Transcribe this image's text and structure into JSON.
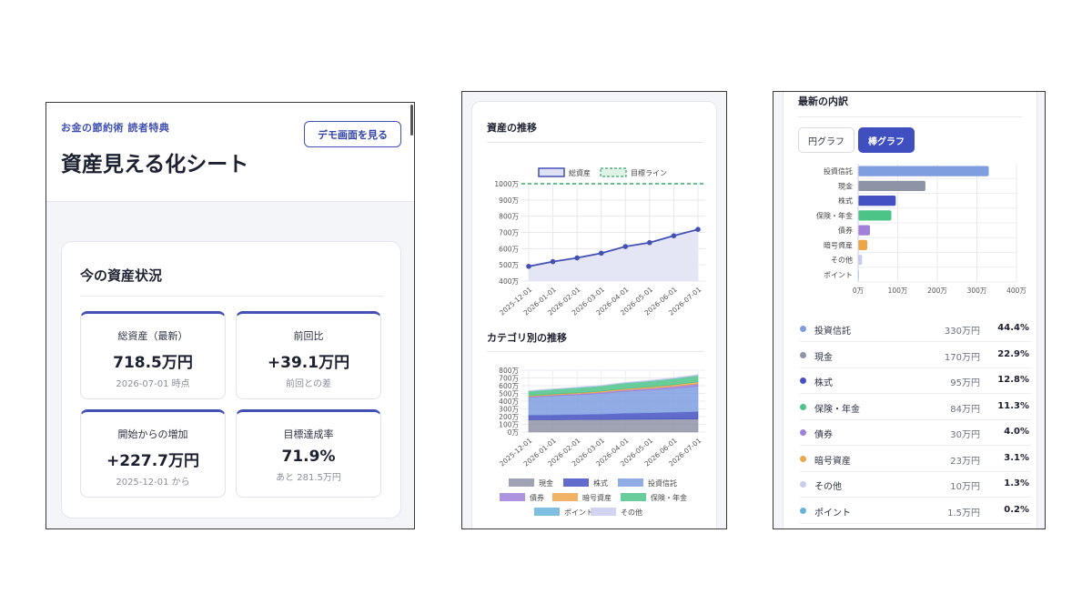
{
  "panel1": {
    "eyebrow": "お金の節約術 読者特典",
    "title": "資産見える化シート",
    "demo_button": "デモ画面を見る",
    "status_title": "今の資産状況",
    "kpis": [
      {
        "label": "総資産（最新）",
        "value": "718.5万円",
        "sub": "2026-07-01 時点"
      },
      {
        "label": "前回比",
        "value": "+39.1万円",
        "sub": "前回との差"
      },
      {
        "label": "開始からの増加",
        "value": "+227.7万円",
        "sub": "2025-12-01 から"
      },
      {
        "label": "目標達成率",
        "value": "71.9%",
        "sub": "あと 281.5万円"
      }
    ]
  },
  "panel2": {
    "trend_title": "資産の推移",
    "category_title": "カテゴリ別の推移"
  },
  "panel3": {
    "breakdown_title": "最新の内訳",
    "tab_pie": "円グラフ",
    "tab_bar": "棒グラフ",
    "legend": [
      {
        "name": "投資信託",
        "amount": "330万円",
        "pct": "44.4%",
        "color": "#7f9ee0"
      },
      {
        "name": "現金",
        "amount": "170万円",
        "pct": "22.9%",
        "color": "#8f93a6"
      },
      {
        "name": "株式",
        "amount": "95万円",
        "pct": "12.8%",
        "color": "#4451c2"
      },
      {
        "name": "保険・年金",
        "amount": "84万円",
        "pct": "11.3%",
        "color": "#4cc488"
      },
      {
        "name": "債券",
        "amount": "30万円",
        "pct": "4.0%",
        "color": "#a080d8"
      },
      {
        "name": "暗号資産",
        "amount": "23万円",
        "pct": "3.1%",
        "color": "#eda54a"
      },
      {
        "name": "その他",
        "amount": "10万円",
        "pct": "1.3%",
        "color": "#c8cbf0"
      },
      {
        "name": "ポイント",
        "amount": "1.5万円",
        "pct": "0.2%",
        "color": "#6ab4dc"
      }
    ]
  },
  "chart_data": [
    {
      "type": "line",
      "title": "資産の推移",
      "x": [
        "2025-12-01",
        "2026-01-01",
        "2026-02-01",
        "2026-03-01",
        "2026-04-01",
        "2026-05-01",
        "2026-06-01",
        "2026-07-01"
      ],
      "series": [
        {
          "name": "総資産",
          "values": [
            490.8,
            520,
            543,
            572,
            613,
            637,
            679.4,
            718.5
          ],
          "color": "#4350b4"
        },
        {
          "name": "目標ライン",
          "values": [
            1000,
            1000,
            1000,
            1000,
            1000,
            1000,
            1000,
            1000
          ],
          "color": "#3aa56a"
        }
      ],
      "yticks": [
        "400万",
        "500万",
        "600万",
        "700万",
        "800万",
        "900万",
        "1000万"
      ],
      "ylim": [
        400,
        1000
      ],
      "grid": true,
      "legend": "top"
    },
    {
      "type": "area",
      "title": "カテゴリ別の推移",
      "x": [
        "2025-12-01",
        "2026-01-01",
        "2026-02-01",
        "2026-03-01",
        "2026-04-01",
        "2026-05-01",
        "2026-06-01",
        "2026-07-01"
      ],
      "series": [
        {
          "name": "現金",
          "values": [
            160,
            160,
            162,
            163,
            165,
            167,
            168,
            170
          ],
          "color": "#8f93a6"
        },
        {
          "name": "株式",
          "values": [
            60,
            62,
            65,
            70,
            78,
            82,
            88,
            95
          ],
          "color": "#4451c2"
        },
        {
          "name": "投資信託",
          "values": [
            230,
            245,
            255,
            265,
            285,
            295,
            310,
            330
          ],
          "color": "#7f9ee0"
        },
        {
          "name": "債券",
          "values": [
            10,
            12,
            14,
            16,
            18,
            22,
            26,
            30
          ],
          "color": "#a080d8"
        },
        {
          "name": "暗号資産",
          "values": [
            10,
            11,
            12,
            14,
            16,
            18,
            20,
            23
          ],
          "color": "#eda54a"
        },
        {
          "name": "保険・年金",
          "values": [
            60,
            63,
            66,
            69,
            72,
            76,
            80,
            84
          ],
          "color": "#4cc488"
        },
        {
          "name": "ポイント",
          "values": [
            1,
            1,
            1,
            1,
            1.2,
            1.3,
            1.4,
            1.5
          ],
          "color": "#6ab4dc"
        },
        {
          "name": "その他",
          "values": [
            5,
            6,
            6,
            7,
            8,
            8,
            9,
            10
          ],
          "color": "#c8cbf0"
        }
      ],
      "yticks": [
        "0万",
        "100万",
        "200万",
        "300万",
        "400万",
        "500万",
        "600万",
        "700万",
        "800万"
      ],
      "ylim": [
        0,
        800
      ],
      "legend": "bottom"
    },
    {
      "type": "bar",
      "title": "最新の内訳",
      "orientation": "horizontal",
      "categories": [
        "投資信託",
        "現金",
        "株式",
        "保険・年金",
        "債券",
        "暗号資産",
        "その他",
        "ポイント"
      ],
      "values": [
        330,
        170,
        95,
        84,
        30,
        23,
        10,
        1.5
      ],
      "colors": [
        "#7f9ee0",
        "#8f93a6",
        "#4451c2",
        "#4cc488",
        "#a080d8",
        "#eda54a",
        "#c8cbf0",
        "#6ab4dc"
      ],
      "xticks": [
        "0万",
        "100万",
        "200万",
        "300万",
        "400万"
      ],
      "xlim": [
        0,
        400
      ],
      "grid": true
    }
  ]
}
